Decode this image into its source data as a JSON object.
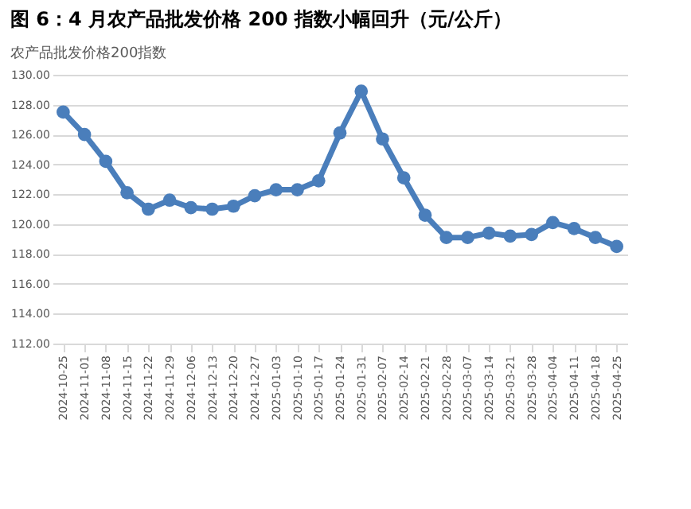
{
  "chart_data": {
    "type": "line",
    "title": "图 6：4 月农产品批发价格 200 指数小幅回升（元/公斤）",
    "subtitle": "农产品批发价格200指数",
    "categories": [
      "2024-10-25",
      "2024-11-01",
      "2024-11-08",
      "2024-11-15",
      "2024-11-22",
      "2024-11-29",
      "2024-12-06",
      "2024-12-13",
      "2024-12-20",
      "2024-12-27",
      "2025-01-03",
      "2025-01-10",
      "2025-01-17",
      "2025-01-24",
      "2025-01-31",
      "2025-02-07",
      "2025-02-14",
      "2025-02-21",
      "2025-02-28",
      "2025-03-07",
      "2025-03-14",
      "2025-03-21",
      "2025-03-28",
      "2025-04-04",
      "2025-04-11",
      "2025-04-18",
      "2025-04-25"
    ],
    "series": [
      {
        "color": "#4a7ebb",
        "values": [
          127.5,
          126.0,
          124.2,
          122.1,
          121.0,
          121.6,
          121.1,
          121.0,
          121.2,
          121.9,
          122.3,
          122.3,
          122.9,
          126.1,
          128.9,
          125.7,
          123.1,
          120.6,
          119.1,
          119.1,
          119.4,
          119.2,
          119.3,
          120.1,
          119.7,
          119.1,
          118.5
        ]
      }
    ],
    "ylim": [
      112,
      130
    ],
    "yticks": [
      {
        "value": 112,
        "label": "112.00"
      },
      {
        "value": 114,
        "label": "114.00"
      },
      {
        "value": 116,
        "label": "116.00"
      },
      {
        "value": 118,
        "label": "118.00"
      },
      {
        "value": 120,
        "label": "120.00"
      },
      {
        "value": 122,
        "label": "122.00"
      },
      {
        "value": 124,
        "label": "124.00"
      },
      {
        "value": 126,
        "label": "126.00"
      },
      {
        "value": 128,
        "label": "128.00"
      },
      {
        "value": 130,
        "label": "130.00"
      }
    ],
    "grid": "y",
    "marker": "circle",
    "line_style": "solid",
    "legend": false
  }
}
